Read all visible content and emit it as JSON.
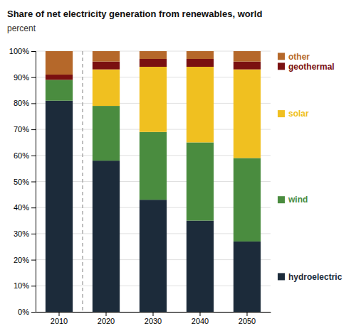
{
  "chart_data": {
    "type": "bar",
    "title": "Share of net electricity generation from renewables, world",
    "subtitle": "percent",
    "stacked": true,
    "grid": true,
    "legend": "right",
    "categories": [
      "2010",
      "2020",
      "2030",
      "2040",
      "2050"
    ],
    "series": [
      {
        "name": "hydroelectric",
        "color": "#1c2b3a",
        "values": [
          81,
          58,
          43,
          35,
          27
        ]
      },
      {
        "name": "wind",
        "color": "#4a8c3f",
        "values": [
          8,
          21,
          26,
          30,
          32
        ]
      },
      {
        "name": "solar",
        "color": "#f0c020",
        "values": [
          0,
          14,
          25,
          29,
          34
        ]
      },
      {
        "name": "geothermal",
        "color": "#7a1010",
        "values": [
          2,
          3,
          3,
          3,
          3
        ]
      },
      {
        "name": "other",
        "color": "#b5682a",
        "values": [
          9,
          4,
          3,
          3,
          4
        ]
      }
    ],
    "ylim": [
      0,
      100
    ],
    "yticks": [
      {
        "value": 0,
        "label": "0%"
      },
      {
        "value": 10,
        "label": "10%"
      },
      {
        "value": 20,
        "label": "20%"
      },
      {
        "value": 30,
        "label": "30%"
      },
      {
        "value": 40,
        "label": "40%"
      },
      {
        "value": 50,
        "label": "50%"
      },
      {
        "value": 60,
        "label": "60%"
      },
      {
        "value": 70,
        "label": "70%"
      },
      {
        "value": 80,
        "label": "80%"
      },
      {
        "value": 90,
        "label": "90%"
      },
      {
        "value": 100,
        "label": "100%"
      }
    ]
  }
}
